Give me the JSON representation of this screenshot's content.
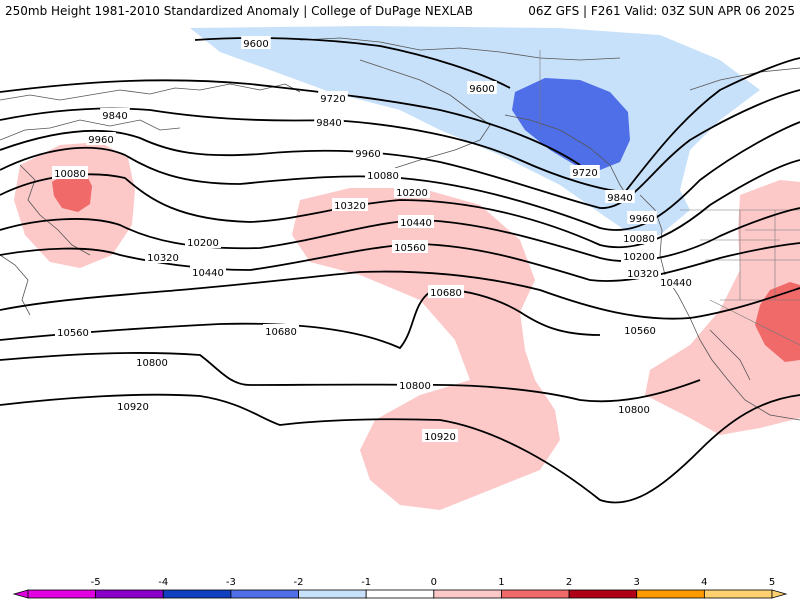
{
  "header": {
    "title_left": "250mb Height 1981-2010 Standardized Anomaly | College of DuPage NEXLAB",
    "title_right": "06Z GFS | F261 Valid: 03Z SUN APR 06 2025"
  },
  "colors": {
    "anom_neg1": "#c8e1fa",
    "anom_neg2": "#4f6fe8",
    "anom_pos1": "#fcc8c8",
    "anom_pos2": "#f06a6a",
    "contour": "#000000"
  },
  "contours": {
    "labels": [
      "9600",
      "9720",
      "9840",
      "9960",
      "10080",
      "10200",
      "10320",
      "10440",
      "10560",
      "10680",
      "10800",
      "10920"
    ]
  },
  "legend": {
    "ticks": [
      "-5",
      "-4",
      "-3",
      "-2",
      "-1",
      "0",
      "1",
      "2",
      "3",
      "4",
      "5"
    ],
    "colors": [
      "#e000e0",
      "#8a00c8",
      "#1040c0",
      "#4f6fe8",
      "#c8e1fa",
      "#ffffff",
      "#fcc8c8",
      "#f06a6a",
      "#b00018",
      "#ff9a00",
      "#ffd070"
    ]
  }
}
